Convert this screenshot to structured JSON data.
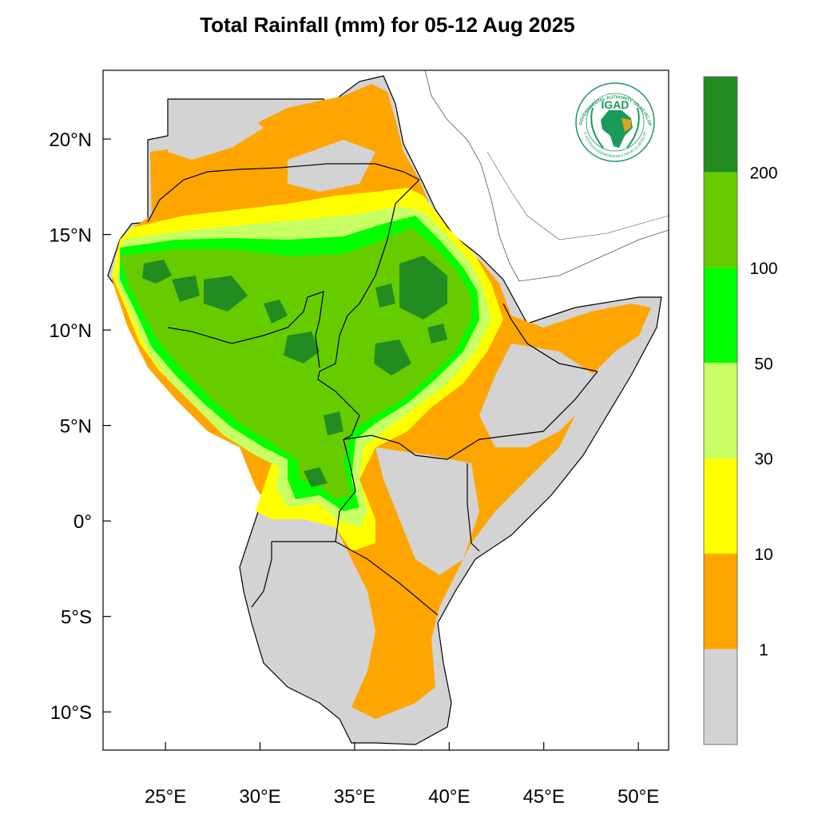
{
  "title": "Total Rainfall (mm) for 05-12 Aug 2025",
  "map": {
    "region": "Greater Horn of Africa",
    "lon_range": [
      21.7,
      51.6
    ],
    "lat_range": [
      -12.0,
      23.6
    ],
    "x_ticks": [
      {
        "value": 25,
        "label": "25°E"
      },
      {
        "value": 30,
        "label": "30°E"
      },
      {
        "value": 35,
        "label": "35°E"
      },
      {
        "value": 40,
        "label": "40°E"
      },
      {
        "value": 45,
        "label": "45°E"
      },
      {
        "value": 50,
        "label": "50°E"
      }
    ],
    "y_ticks": [
      {
        "value": 20,
        "label": "20°N"
      },
      {
        "value": 15,
        "label": "15°N"
      },
      {
        "value": 10,
        "label": "10°N"
      },
      {
        "value": 5,
        "label": "5°N"
      },
      {
        "value": 0,
        "label": "0°"
      },
      {
        "value": -5,
        "label": "5°S"
      },
      {
        "value": -10,
        "label": "10°S"
      }
    ],
    "colors": {
      "below_1": "#d3d3d3",
      "1_10": "#ffa500",
      "10_30": "#ffff00",
      "30_50": "#c8ff64",
      "50_100": "#00ff00",
      "100_200": "#66cc00",
      "above_200": "#228b22"
    }
  },
  "legend": {
    "bins": [
      {
        "color": "#d3d3d3"
      },
      {
        "color": "#ffa500"
      },
      {
        "color": "#ffff00"
      },
      {
        "color": "#c8ff64"
      },
      {
        "color": "#00ff00"
      },
      {
        "color": "#66cc00"
      },
      {
        "color": "#228b22"
      }
    ],
    "labels": [
      "1",
      "10",
      "30",
      "50",
      "100",
      "200"
    ]
  },
  "logo": {
    "text": "IGAD",
    "arc_top": "INTERGOVERNMENTAL AUTHORITY ON DEVELOPMENT",
    "arc_bottom": "AUTORITÉ INTERGOUVERNEMENTALE POUR LE DÉVELOPPEMENT"
  }
}
